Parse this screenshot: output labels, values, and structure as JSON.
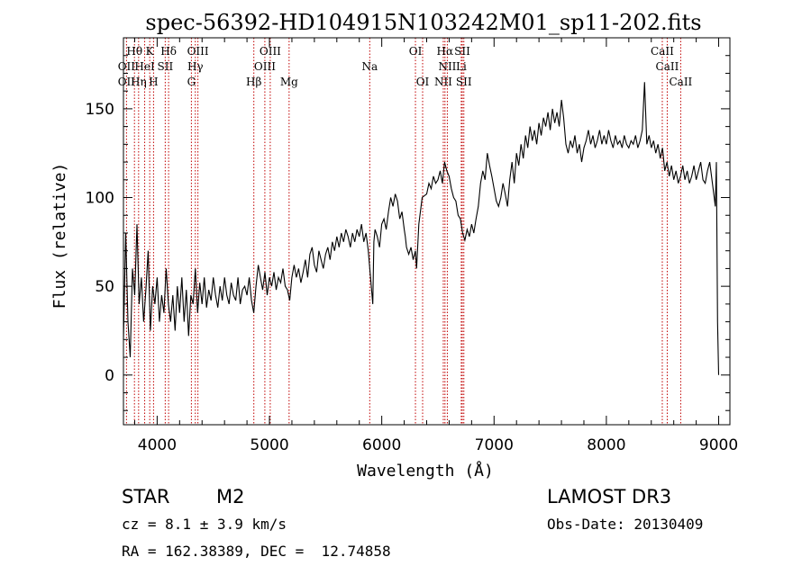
{
  "chart_data": {
    "type": "line",
    "title": "spec-56392-HD104915N103242M01_sp11-202.fits",
    "xlabel": "Wavelength (Å)",
    "ylabel": "Flux (relative)",
    "xlim": [
      3700,
      9100
    ],
    "ylim": [
      -28,
      190
    ],
    "xticks": [
      4000,
      5000,
      6000,
      7000,
      8000,
      9000
    ],
    "yticks": [
      0,
      50,
      100,
      150
    ],
    "grid": false,
    "series": [
      {
        "color": "#000000",
        "points": [
          [
            3700,
            20
          ],
          [
            3720,
            80
          ],
          [
            3740,
            30
          ],
          [
            3760,
            10
          ],
          [
            3780,
            60
          ],
          [
            3800,
            45
          ],
          [
            3820,
            85
          ],
          [
            3840,
            40
          ],
          [
            3860,
            55
          ],
          [
            3880,
            30
          ],
          [
            3900,
            48
          ],
          [
            3920,
            70
          ],
          [
            3940,
            25
          ],
          [
            3960,
            50
          ],
          [
            3980,
            40
          ],
          [
            4000,
            55
          ],
          [
            4020,
            30
          ],
          [
            4040,
            45
          ],
          [
            4060,
            35
          ],
          [
            4080,
            60
          ],
          [
            4100,
            40
          ],
          [
            4120,
            30
          ],
          [
            4140,
            45
          ],
          [
            4160,
            25
          ],
          [
            4180,
            50
          ],
          [
            4200,
            35
          ],
          [
            4220,
            55
          ],
          [
            4240,
            30
          ],
          [
            4260,
            48
          ],
          [
            4280,
            22
          ],
          [
            4300,
            45
          ],
          [
            4320,
            40
          ],
          [
            4340,
            60
          ],
          [
            4360,
            35
          ],
          [
            4380,
            52
          ],
          [
            4400,
            40
          ],
          [
            4420,
            55
          ],
          [
            4440,
            38
          ],
          [
            4460,
            48
          ],
          [
            4480,
            42
          ],
          [
            4500,
            55
          ],
          [
            4520,
            45
          ],
          [
            4540,
            38
          ],
          [
            4560,
            50
          ],
          [
            4580,
            42
          ],
          [
            4600,
            55
          ],
          [
            4620,
            45
          ],
          [
            4640,
            40
          ],
          [
            4660,
            52
          ],
          [
            4680,
            45
          ],
          [
            4700,
            42
          ],
          [
            4720,
            55
          ],
          [
            4740,
            40
          ],
          [
            4760,
            48
          ],
          [
            4780,
            50
          ],
          [
            4800,
            45
          ],
          [
            4820,
            55
          ],
          [
            4840,
            42
          ],
          [
            4860,
            35
          ],
          [
            4880,
            50
          ],
          [
            4900,
            62
          ],
          [
            4920,
            55
          ],
          [
            4940,
            48
          ],
          [
            4960,
            58
          ],
          [
            4980,
            45
          ],
          [
            5000,
            55
          ],
          [
            5020,
            50
          ],
          [
            5040,
            58
          ],
          [
            5060,
            48
          ],
          [
            5080,
            55
          ],
          [
            5100,
            52
          ],
          [
            5120,
            60
          ],
          [
            5140,
            50
          ],
          [
            5160,
            48
          ],
          [
            5180,
            42
          ],
          [
            5200,
            55
          ],
          [
            5220,
            62
          ],
          [
            5240,
            55
          ],
          [
            5260,
            60
          ],
          [
            5280,
            52
          ],
          [
            5300,
            58
          ],
          [
            5320,
            65
          ],
          [
            5340,
            55
          ],
          [
            5360,
            68
          ],
          [
            5380,
            72
          ],
          [
            5400,
            62
          ],
          [
            5420,
            58
          ],
          [
            5440,
            70
          ],
          [
            5460,
            65
          ],
          [
            5480,
            60
          ],
          [
            5500,
            68
          ],
          [
            5520,
            72
          ],
          [
            5540,
            65
          ],
          [
            5560,
            75
          ],
          [
            5580,
            70
          ],
          [
            5600,
            78
          ],
          [
            5620,
            72
          ],
          [
            5640,
            80
          ],
          [
            5660,
            75
          ],
          [
            5680,
            82
          ],
          [
            5700,
            78
          ],
          [
            5720,
            72
          ],
          [
            5740,
            80
          ],
          [
            5760,
            75
          ],
          [
            5780,
            82
          ],
          [
            5800,
            78
          ],
          [
            5820,
            85
          ],
          [
            5840,
            75
          ],
          [
            5860,
            80
          ],
          [
            5880,
            70
          ],
          [
            5900,
            55
          ],
          [
            5920,
            40
          ],
          [
            5930,
            75
          ],
          [
            5940,
            82
          ],
          [
            5960,
            78
          ],
          [
            5980,
            72
          ],
          [
            6000,
            85
          ],
          [
            6020,
            88
          ],
          [
            6040,
            82
          ],
          [
            6060,
            92
          ],
          [
            6080,
            100
          ],
          [
            6100,
            95
          ],
          [
            6120,
            102
          ],
          [
            6140,
            98
          ],
          [
            6160,
            88
          ],
          [
            6180,
            92
          ],
          [
            6200,
            82
          ],
          [
            6210,
            78
          ],
          [
            6220,
            72
          ],
          [
            6240,
            68
          ],
          [
            6260,
            72
          ],
          [
            6280,
            65
          ],
          [
            6300,
            70
          ],
          [
            6310,
            60
          ],
          [
            6330,
            85
          ],
          [
            6360,
            100
          ],
          [
            6400,
            102
          ],
          [
            6420,
            108
          ],
          [
            6440,
            105
          ],
          [
            6460,
            112
          ],
          [
            6480,
            108
          ],
          [
            6500,
            110
          ],
          [
            6520,
            115
          ],
          [
            6540,
            108
          ],
          [
            6560,
            120
          ],
          [
            6580,
            115
          ],
          [
            6600,
            112
          ],
          [
            6620,
            105
          ],
          [
            6640,
            100
          ],
          [
            6660,
            98
          ],
          [
            6680,
            90
          ],
          [
            6700,
            88
          ],
          [
            6720,
            80
          ],
          [
            6740,
            76
          ],
          [
            6760,
            82
          ],
          [
            6780,
            78
          ],
          [
            6800,
            85
          ],
          [
            6820,
            80
          ],
          [
            6840,
            88
          ],
          [
            6860,
            95
          ],
          [
            6880,
            108
          ],
          [
            6900,
            115
          ],
          [
            6920,
            110
          ],
          [
            6940,
            125
          ],
          [
            6960,
            118
          ],
          [
            6980,
            112
          ],
          [
            7000,
            105
          ],
          [
            7020,
            98
          ],
          [
            7040,
            95
          ],
          [
            7060,
            100
          ],
          [
            7080,
            108
          ],
          [
            7100,
            102
          ],
          [
            7120,
            95
          ],
          [
            7140,
            110
          ],
          [
            7160,
            120
          ],
          [
            7180,
            108
          ],
          [
            7200,
            125
          ],
          [
            7220,
            118
          ],
          [
            7240,
            130
          ],
          [
            7260,
            122
          ],
          [
            7280,
            135
          ],
          [
            7300,
            128
          ],
          [
            7320,
            140
          ],
          [
            7340,
            132
          ],
          [
            7360,
            138
          ],
          [
            7380,
            130
          ],
          [
            7400,
            142
          ],
          [
            7420,
            135
          ],
          [
            7440,
            145
          ],
          [
            7460,
            140
          ],
          [
            7480,
            148
          ],
          [
            7500,
            138
          ],
          [
            7520,
            150
          ],
          [
            7540,
            142
          ],
          [
            7560,
            148
          ],
          [
            7580,
            140
          ],
          [
            7600,
            155
          ],
          [
            7620,
            145
          ],
          [
            7640,
            130
          ],
          [
            7660,
            125
          ],
          [
            7680,
            132
          ],
          [
            7700,
            128
          ],
          [
            7720,
            135
          ],
          [
            7740,
            125
          ],
          [
            7760,
            130
          ],
          [
            7780,
            120
          ],
          [
            7800,
            128
          ],
          [
            7820,
            132
          ],
          [
            7840,
            138
          ],
          [
            7860,
            130
          ],
          [
            7880,
            135
          ],
          [
            7900,
            128
          ],
          [
            7920,
            132
          ],
          [
            7940,
            138
          ],
          [
            7960,
            130
          ],
          [
            7980,
            135
          ],
          [
            8000,
            130
          ],
          [
            8020,
            138
          ],
          [
            8040,
            132
          ],
          [
            8060,
            128
          ],
          [
            8080,
            135
          ],
          [
            8100,
            130
          ],
          [
            8120,
            132
          ],
          [
            8140,
            128
          ],
          [
            8160,
            135
          ],
          [
            8180,
            130
          ],
          [
            8200,
            128
          ],
          [
            8220,
            132
          ],
          [
            8240,
            130
          ],
          [
            8260,
            135
          ],
          [
            8280,
            128
          ],
          [
            8300,
            132
          ],
          [
            8320,
            138
          ],
          [
            8340,
            165
          ],
          [
            8360,
            130
          ],
          [
            8380,
            135
          ],
          [
            8400,
            128
          ],
          [
            8420,
            132
          ],
          [
            8440,
            125
          ],
          [
            8460,
            130
          ],
          [
            8480,
            122
          ],
          [
            8500,
            128
          ],
          [
            8520,
            115
          ],
          [
            8540,
            120
          ],
          [
            8560,
            112
          ],
          [
            8580,
            118
          ],
          [
            8600,
            110
          ],
          [
            8620,
            115
          ],
          [
            8640,
            108
          ],
          [
            8660,
            112
          ],
          [
            8680,
            118
          ],
          [
            8700,
            110
          ],
          [
            8720,
            115
          ],
          [
            8740,
            108
          ],
          [
            8760,
            112
          ],
          [
            8780,
            118
          ],
          [
            8800,
            110
          ],
          [
            8820,
            115
          ],
          [
            8840,
            120
          ],
          [
            8860,
            110
          ],
          [
            8880,
            108
          ],
          [
            8900,
            115
          ],
          [
            8920,
            120
          ],
          [
            8940,
            110
          ],
          [
            8960,
            100
          ],
          [
            8970,
            95
          ],
          [
            8980,
            120
          ],
          [
            8990,
            30
          ],
          [
            9000,
            0
          ]
        ]
      }
    ],
    "line_labels": [
      {
        "text": "Hθ",
        "x": 3798,
        "row": 1
      },
      {
        "text": "K",
        "x": 3934,
        "row": 1
      },
      {
        "text": "Hδ",
        "x": 4102,
        "row": 1
      },
      {
        "text": "OIII",
        "x": 4363,
        "row": 1
      },
      {
        "text": "OIII",
        "x": 5007,
        "row": 1
      },
      {
        "text": "OI",
        "x": 6300,
        "row": 1
      },
      {
        "text": "Hα",
        "x": 6563,
        "row": 1
      },
      {
        "text": "SII",
        "x": 6717,
        "row": 1
      },
      {
        "text": "CaII",
        "x": 8498,
        "row": 1
      },
      {
        "text": "OII",
        "x": 3727,
        "row": 2
      },
      {
        "text": "HeI",
        "x": 3889,
        "row": 2
      },
      {
        "text": "SII",
        "x": 4072,
        "row": 2
      },
      {
        "text": "Hγ",
        "x": 4340,
        "row": 2
      },
      {
        "text": "OIII",
        "x": 4959,
        "row": 2
      },
      {
        "text": "Na",
        "x": 5893,
        "row": 2
      },
      {
        "text": "NII",
        "x": 6584,
        "row": 2
      },
      {
        "text": "Li",
        "x": 6708,
        "row": 2
      },
      {
        "text": "CaII",
        "x": 8542,
        "row": 2
      },
      {
        "text": "OII",
        "x": 3727,
        "row": 3
      },
      {
        "text": "Hη",
        "x": 3835,
        "row": 3
      },
      {
        "text": "H",
        "x": 3968,
        "row": 3
      },
      {
        "text": "G",
        "x": 4305,
        "row": 3
      },
      {
        "text": "Hβ",
        "x": 4861,
        "row": 3
      },
      {
        "text": "Mg",
        "x": 5175,
        "row": 3
      },
      {
        "text": "OI",
        "x": 6364,
        "row": 3
      },
      {
        "text": "NII",
        "x": 6548,
        "row": 3
      },
      {
        "text": "SII",
        "x": 6731,
        "row": 3
      },
      {
        "text": "CaII",
        "x": 8662,
        "row": 3
      }
    ],
    "line_color": "#c00000"
  },
  "info": {
    "object_class": "STAR",
    "subclass": "M2",
    "survey": "LAMOST DR3",
    "cz": "cz = 8.1 ± 3.9 km/s",
    "obs_date": "Obs-Date: 20130409",
    "coords": "RA = 162.38389, DEC =  12.74858"
  }
}
